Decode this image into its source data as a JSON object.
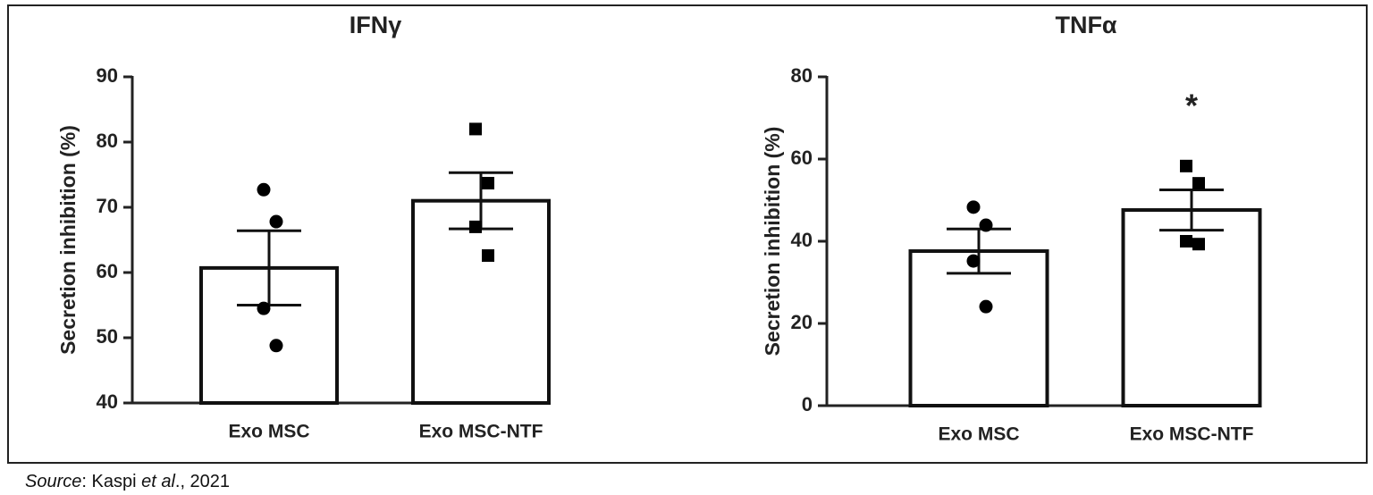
{
  "chart_data": [
    {
      "type": "bar",
      "title": "IFNγ",
      "y_label": "Secretion inhibition (%)",
      "categories": [
        "Exo MSC",
        "Exo MSC-NTF"
      ],
      "values": [
        60.7,
        71.0
      ],
      "errors": [
        5.7,
        4.3
      ],
      "points": [
        [
          72.7,
          67.8,
          54.5,
          48.8
        ],
        [
          82.0,
          73.7,
          67.0,
          62.6
        ]
      ],
      "point_markers": [
        "circle",
        "square"
      ],
      "color": "#ffffff",
      "ylim": [
        40,
        90
      ],
      "yticks": [
        40,
        50,
        60,
        70,
        80,
        90
      ]
    },
    {
      "type": "bar",
      "title": "TNFα",
      "y_label": "Secretion inhibition (%)",
      "categories": [
        "Exo MSC",
        "Exo MSC-NTF"
      ],
      "values": [
        37.6,
        47.6
      ],
      "errors": [
        5.4,
        4.9
      ],
      "points": [
        [
          48.3,
          43.9,
          35.2,
          24.1
        ],
        [
          58.3,
          54.1,
          40.0,
          39.3
        ]
      ],
      "point_markers": [
        "circle",
        "square"
      ],
      "color": "#ffffff",
      "ylim": [
        0,
        80
      ],
      "yticks": [
        0,
        20,
        40,
        60,
        80
      ],
      "annotations": [
        {
          "text": "*",
          "category": 1
        }
      ]
    }
  ],
  "source": [
    "Source",
    ": Kaspi ",
    "et al",
    "., 2021"
  ]
}
